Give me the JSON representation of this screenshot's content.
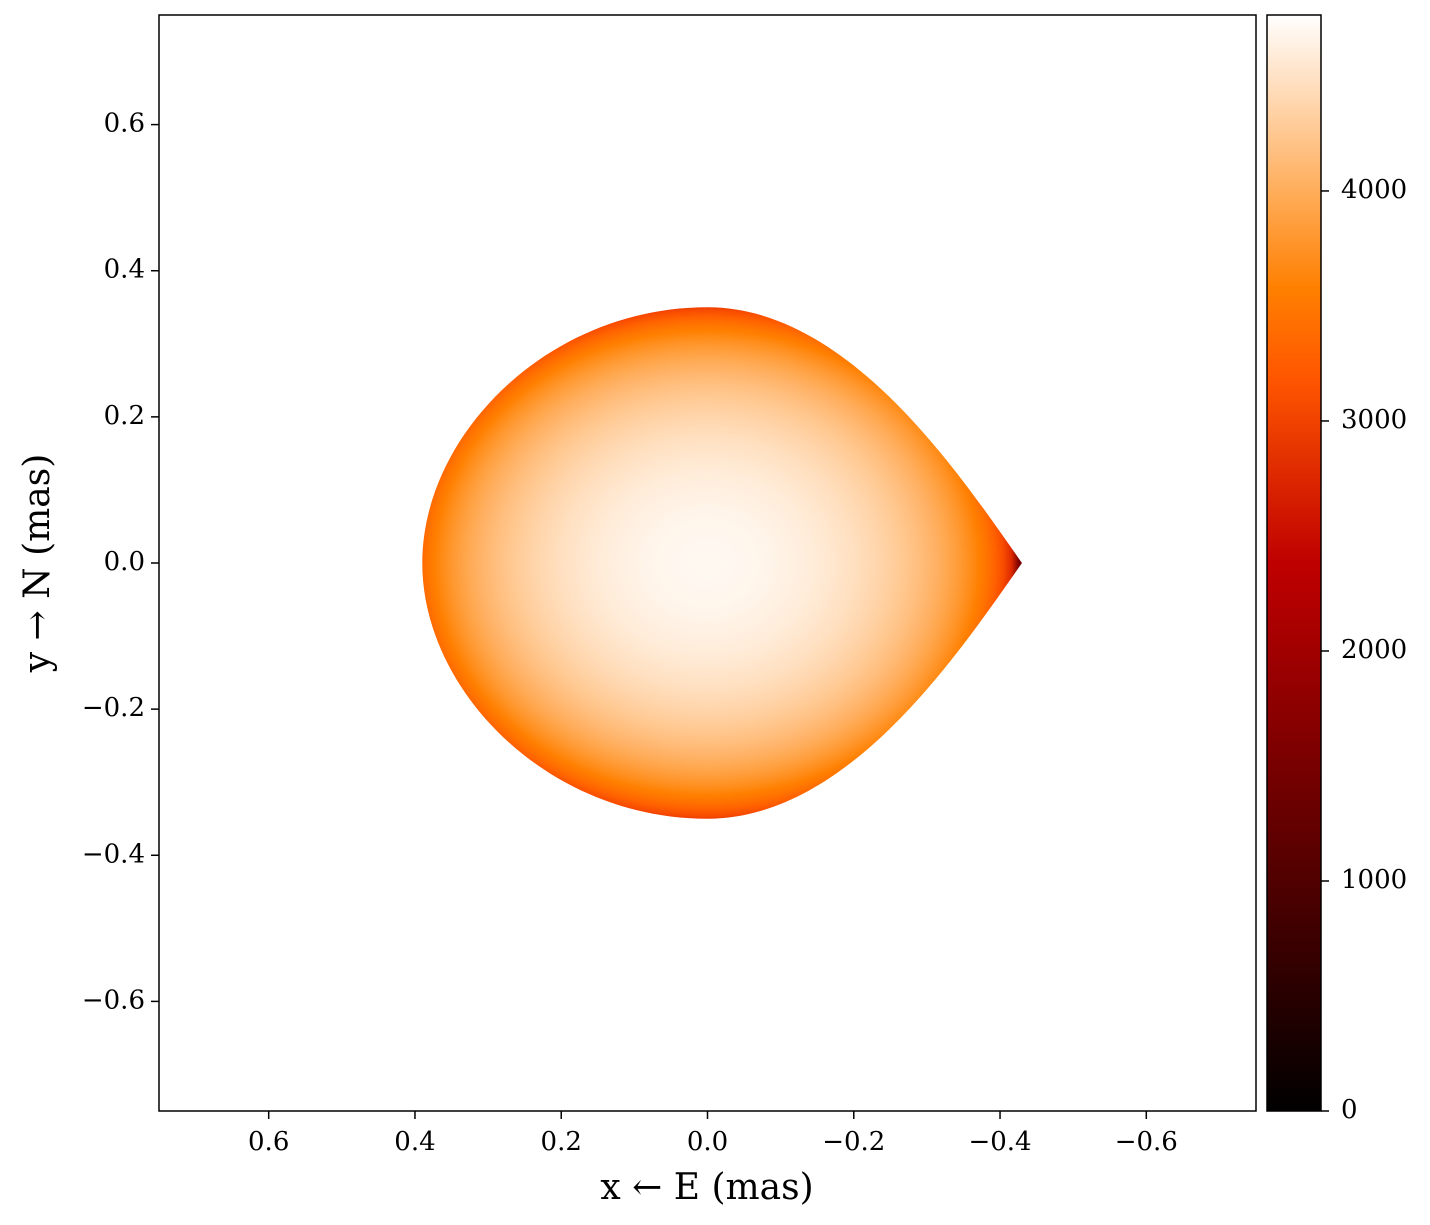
{
  "chart_data": {
    "type": "image",
    "xlabel": "x ← E (mas)",
    "ylabel": "y → N (mas)",
    "xlim": [
      0.75,
      -0.75
    ],
    "ylim": [
      -0.75,
      0.75
    ],
    "xticks": [
      0.6,
      0.4,
      0.2,
      {
        "value": 0,
        "label": "0.0"
      },
      {
        "value": -0.2,
        "label": "−0.2"
      },
      {
        "value": -0.4,
        "label": "−0.4"
      },
      {
        "value": -0.6,
        "label": "−0.6"
      }
    ],
    "yticks": [
      {
        "value": -0.6,
        "label": "−0.6"
      },
      {
        "value": -0.4,
        "label": "−0.4"
      },
      {
        "value": -0.2,
        "label": "−0.2"
      },
      {
        "value": 0,
        "label": "0.0"
      },
      0.2,
      0.4,
      0.6
    ],
    "colormap": "gist_heat",
    "clim": [
      0,
      4765
    ],
    "cticks": [
      0,
      1000,
      2000,
      3000,
      4000
    ],
    "image": {
      "x_left": 0.39,
      "x_right": -0.43,
      "y_top": 0.35,
      "y_bottom": -0.35,
      "center_value": 4700,
      "edge_value": 1500
    }
  }
}
